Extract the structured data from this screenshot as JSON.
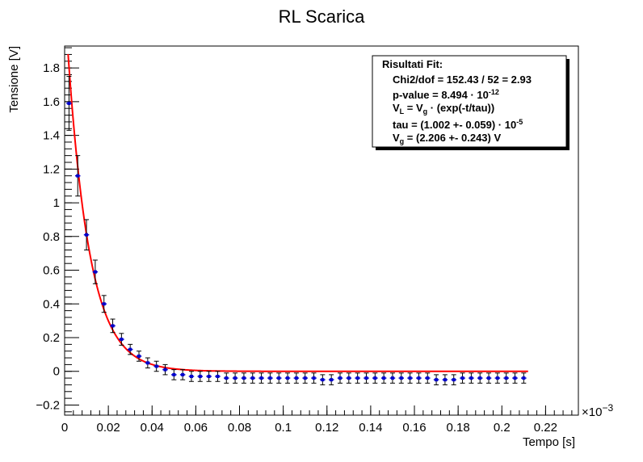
{
  "chart_data": {
    "type": "scatter",
    "title": "RL Scarica",
    "xlabel": "Tempo [s]",
    "ylabel": "Tensione [V]",
    "x_multiplier": "×10",
    "x_multiplier_exp": "−3",
    "xlim": [
      0,
      0.235
    ],
    "ylim": [
      -0.26,
      1.93
    ],
    "x_ticks": [
      0,
      0.02,
      0.04,
      0.06,
      0.08,
      0.1,
      0.12,
      0.14,
      0.16,
      0.18,
      0.2,
      0.22
    ],
    "x_tick_labels": [
      "0",
      "0.02",
      "0.04",
      "0.06",
      "0.08",
      "0.1",
      "0.12",
      "0.14",
      "0.16",
      "0.18",
      "0.2",
      "0.22"
    ],
    "y_ticks": [
      -0.2,
      0,
      0.2,
      0.4,
      0.6,
      0.8,
      1,
      1.2,
      1.4,
      1.6,
      1.8
    ],
    "y_tick_labels": [
      "−0.2",
      "0",
      "0.2",
      "0.4",
      "0.6",
      "0.8",
      "1",
      "1.2",
      "1.4",
      "1.6",
      "1.8"
    ],
    "fit_function": {
      "Vg": 2.206,
      "tau": 0.01002,
      "t_end": 0.212,
      "color": "#ff0000"
    },
    "marker_color": "#0000cc",
    "series": [
      {
        "x": [
          0.002,
          0.006,
          0.01,
          0.014,
          0.018,
          0.022,
          0.026,
          0.03,
          0.034,
          0.038,
          0.042,
          0.046,
          0.05,
          0.054,
          0.058,
          0.062,
          0.066,
          0.07,
          0.074,
          0.078,
          0.082,
          0.086,
          0.09,
          0.094,
          0.098,
          0.102,
          0.106,
          0.11,
          0.114,
          0.118,
          0.122,
          0.126,
          0.13,
          0.134,
          0.138,
          0.142,
          0.146,
          0.15,
          0.154,
          0.158,
          0.162,
          0.166,
          0.17,
          0.174,
          0.178,
          0.182,
          0.186,
          0.19,
          0.194,
          0.198,
          0.202,
          0.206,
          0.21
        ],
        "y": [
          1.59,
          1.16,
          0.81,
          0.59,
          0.4,
          0.27,
          0.19,
          0.13,
          0.09,
          0.05,
          0.03,
          0.01,
          -0.02,
          -0.02,
          -0.03,
          -0.03,
          -0.03,
          -0.03,
          -0.04,
          -0.04,
          -0.04,
          -0.04,
          -0.04,
          -0.04,
          -0.04,
          -0.04,
          -0.04,
          -0.04,
          -0.04,
          -0.05,
          -0.05,
          -0.04,
          -0.04,
          -0.04,
          -0.04,
          -0.04,
          -0.04,
          -0.04,
          -0.04,
          -0.04,
          -0.04,
          -0.04,
          -0.05,
          -0.05,
          -0.05,
          -0.04,
          -0.04,
          -0.04,
          -0.04,
          -0.04,
          -0.04,
          -0.04,
          -0.04
        ],
        "yerr": [
          0.16,
          0.12,
          0.09,
          0.07,
          0.05,
          0.04,
          0.035,
          0.03,
          0.03,
          0.03,
          0.03,
          0.03,
          0.03,
          0.03,
          0.03,
          0.03,
          0.03,
          0.03,
          0.03,
          0.03,
          0.03,
          0.03,
          0.03,
          0.03,
          0.03,
          0.03,
          0.03,
          0.03,
          0.03,
          0.03,
          0.03,
          0.03,
          0.03,
          0.03,
          0.03,
          0.03,
          0.03,
          0.03,
          0.03,
          0.03,
          0.03,
          0.03,
          0.03,
          0.03,
          0.03,
          0.03,
          0.03,
          0.03,
          0.03,
          0.03,
          0.03,
          0.03,
          0.03
        ],
        "xerr": 0.0012
      }
    ],
    "fit_results": {
      "heading": "Risultati Fit:",
      "chi2": "Chi2/dof = 152.43 / 52 = 2.93",
      "pvalue": "p-value  = 8.494  · 10",
      "pvalue_exp": "-12",
      "model_1": "V",
      "model_sub_L": "L",
      "model_2": " = V",
      "model_sub_g": "g",
      "model_3": "  · (exp(-t/tau))",
      "tau": "tau = (1.002 +- 0.059)  · 10",
      "tau_exp": "-5",
      "vg_1": "V",
      "vg_sub": "g",
      "vg_2": " = (2.206 +- 0.243) V"
    }
  }
}
